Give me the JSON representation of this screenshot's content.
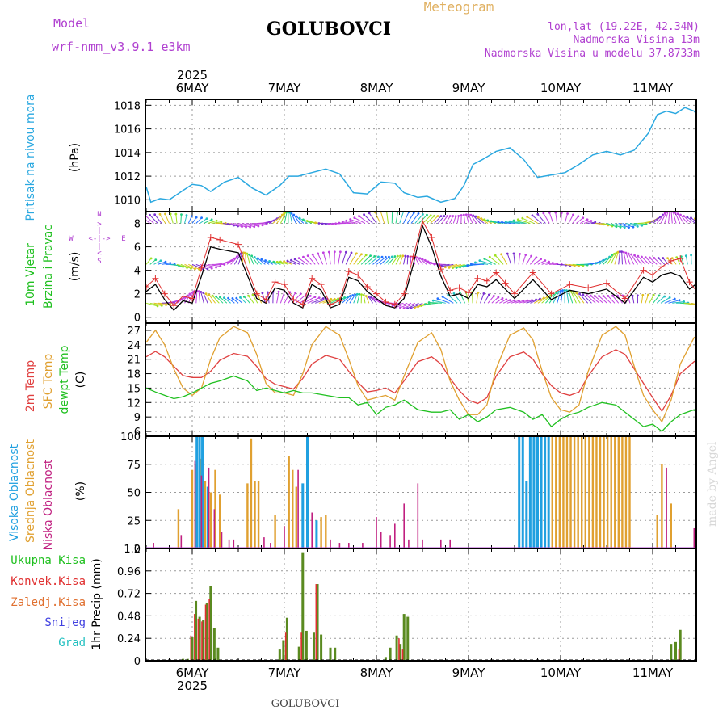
{
  "header": {
    "model_label": "Model",
    "model_name": "wrf-nmm_v3.9.1 e3km",
    "station": "GOLUBOVCI",
    "product": "Meteogram",
    "lonlat": "lon,lat (19.22E, 42.34N)",
    "elevation": "Nadmorska Visina 13m",
    "model_elevation": "Nadmorska Visina u modelu 37.8733m",
    "footer_station": "GOLUBOVCI",
    "watermark": "made by Angel"
  },
  "colors": {
    "pressure": "#2aa8e0",
    "wind_speed": "#000000",
    "gust": "#e03030",
    "temp2m": "#e04040",
    "sfc": "#e0a030",
    "dewpt": "#20c020",
    "cloud_high": "#20a0e0",
    "cloud_mid": "#e0a030",
    "cloud_low": "#c02080",
    "precip_total": "#5a8a20",
    "precip_conv": "#e03030"
  },
  "time_axis": {
    "year": "2025",
    "days": [
      "6MAY",
      "7MAY",
      "8MAY",
      "9MAY",
      "10MAY",
      "11MAY"
    ]
  },
  "chart_data": [
    {
      "type": "line",
      "title": "Pritisak na nivou mora",
      "ylabel": "(hPa)",
      "ylim": [
        1009,
        1018.5
      ],
      "yticks": [
        1010,
        1012,
        1014,
        1016,
        1018
      ],
      "x_unit": "day",
      "series": [
        {
          "name": "Pressure",
          "x": [
            -0.5,
            -0.45,
            -0.35,
            -0.25,
            -0.1,
            0.0,
            0.1,
            0.2,
            0.35,
            0.5,
            0.65,
            0.8,
            0.95,
            1.05,
            1.15,
            1.3,
            1.45,
            1.6,
            1.75,
            1.9,
            2.05,
            2.2,
            2.3,
            2.45,
            2.55,
            2.7,
            2.85,
            2.95,
            3.05,
            3.15,
            3.3,
            3.45,
            3.6,
            3.75,
            3.9,
            4.05,
            4.2,
            4.35,
            4.5,
            4.65,
            4.8,
            4.95,
            5.05,
            5.15,
            5.25,
            5.35,
            5.45,
            5.55,
            5.6
          ],
          "y": [
            1011.1,
            1009.8,
            1010.1,
            1010.0,
            1010.8,
            1011.3,
            1011.2,
            1010.7,
            1011.5,
            1011.9,
            1011.0,
            1010.4,
            1011.2,
            1012.0,
            1012.0,
            1012.3,
            1012.6,
            1012.2,
            1010.6,
            1010.5,
            1011.5,
            1011.4,
            1010.6,
            1010.2,
            1010.3,
            1009.8,
            1010.1,
            1011.2,
            1013.0,
            1013.4,
            1014.1,
            1014.4,
            1013.4,
            1011.9,
            1012.1,
            1012.3,
            1013.0,
            1013.8,
            1014.1,
            1013.8,
            1014.2,
            1015.6,
            1017.2,
            1017.5,
            1017.3,
            1017.8,
            1017.5,
            1016.5,
            1015.8
          ]
        }
      ]
    },
    {
      "type": "line",
      "title": "10m Vjetar Brzina i Pravac",
      "ylabel": "(m/s)",
      "ylim": [
        -0.5,
        9
      ],
      "yticks": [
        0,
        2,
        4,
        6,
        8
      ],
      "compass_labels": {
        "north": "N",
        "south": "S",
        "west": "W",
        "east": "E"
      },
      "series": [
        {
          "name": "Wind speed",
          "x": [
            -0.5,
            -0.4,
            -0.3,
            -0.2,
            -0.1,
            0.0,
            0.1,
            0.2,
            0.3,
            0.5,
            0.7,
            0.8,
            0.9,
            1.0,
            1.1,
            1.2,
            1.3,
            1.4,
            1.5,
            1.6,
            1.7,
            1.8,
            1.9,
            2.0,
            2.1,
            2.2,
            2.3,
            2.4,
            2.5,
            2.6,
            2.7,
            2.8,
            2.9,
            3.0,
            3.1,
            3.2,
            3.3,
            3.4,
            3.5,
            3.7,
            3.9,
            4.1,
            4.3,
            4.5,
            4.7,
            4.9,
            5.0,
            5.1,
            5.2,
            5.3,
            5.4,
            5.5,
            5.6
          ],
          "y": [
            2.2,
            2.8,
            1.5,
            0.6,
            1.4,
            1.2,
            3.5,
            6.0,
            5.8,
            5.5,
            1.6,
            1.2,
            2.5,
            2.3,
            1.2,
            0.8,
            2.8,
            2.3,
            0.8,
            1.1,
            3.4,
            3.1,
            2.2,
            1.6,
            1.0,
            0.8,
            1.6,
            4.5,
            7.8,
            6.0,
            3.5,
            1.8,
            2.0,
            1.6,
            2.8,
            2.6,
            3.2,
            2.4,
            1.6,
            3.2,
            1.5,
            2.3,
            2.0,
            2.4,
            1.2,
            3.4,
            3.0,
            3.6,
            3.8,
            3.5,
            2.4,
            3.0,
            2.8
          ]
        },
        {
          "name": "Gust",
          "x": [
            -0.5,
            -0.4,
            -0.3,
            -0.2,
            -0.1,
            0.0,
            0.1,
            0.2,
            0.3,
            0.5,
            0.7,
            0.8,
            0.9,
            1.0,
            1.1,
            1.2,
            1.3,
            1.4,
            1.5,
            1.6,
            1.7,
            1.8,
            1.9,
            2.0,
            2.1,
            2.2,
            2.3,
            2.4,
            2.5,
            2.6,
            2.7,
            2.8,
            2.9,
            3.0,
            3.1,
            3.2,
            3.3,
            3.4,
            3.5,
            3.7,
            3.9,
            4.1,
            4.3,
            4.5,
            4.7,
            4.9,
            5.0,
            5.1,
            5.2,
            5.3,
            5.4,
            5.5,
            5.6
          ],
          "y": [
            2.6,
            3.3,
            2.0,
            1.0,
            1.8,
            1.6,
            4.2,
            6.8,
            6.6,
            6.2,
            2.0,
            1.5,
            3.0,
            2.8,
            1.5,
            1.1,
            3.3,
            2.8,
            1.1,
            1.4,
            3.9,
            3.6,
            2.6,
            2.0,
            1.3,
            1.1,
            2.0,
            5.2,
            8.2,
            6.8,
            4.1,
            2.3,
            2.5,
            2.1,
            3.3,
            3.1,
            3.8,
            2.9,
            2.0,
            3.8,
            2.0,
            2.8,
            2.5,
            2.9,
            1.6,
            4.0,
            3.6,
            4.3,
            4.8,
            5.0,
            3.0,
            2.0,
            1.8
          ]
        }
      ],
      "barb_rows": [
        8,
        4.5,
        1.2
      ]
    },
    {
      "type": "line",
      "title": "2m Temp / SFC Temp / dewpt Temp",
      "ylabel": "(C)",
      "ylim": [
        5,
        28.5
      ],
      "yticks": [
        6,
        9,
        12,
        15,
        18,
        21,
        24,
        27
      ],
      "series": [
        {
          "name": "2m Temp",
          "x": [
            -0.5,
            -0.4,
            -0.3,
            -0.2,
            -0.1,
            0.0,
            0.1,
            0.2,
            0.3,
            0.45,
            0.6,
            0.7,
            0.8,
            0.9,
            1.0,
            1.1,
            1.2,
            1.3,
            1.45,
            1.6,
            1.7,
            1.8,
            1.9,
            2.0,
            2.1,
            2.2,
            2.3,
            2.45,
            2.6,
            2.7,
            2.8,
            2.9,
            3.0,
            3.1,
            3.2,
            3.3,
            3.45,
            3.6,
            3.7,
            3.8,
            3.9,
            4.0,
            4.1,
            4.2,
            4.3,
            4.45,
            4.6,
            4.7,
            4.8,
            4.9,
            5.0,
            5.1,
            5.2,
            5.3,
            5.45,
            5.6
          ],
          "y": [
            21.5,
            22.6,
            21.5,
            19.5,
            17.6,
            17.2,
            17.2,
            18.5,
            20.8,
            22.2,
            21.6,
            19.5,
            17.0,
            15.8,
            15.3,
            14.8,
            17.0,
            20.0,
            21.8,
            21.0,
            18.5,
            16.2,
            14.2,
            14.5,
            15.0,
            14.0,
            16.5,
            20.5,
            21.5,
            20.0,
            17.0,
            14.5,
            12.5,
            11.8,
            13.0,
            17.5,
            21.5,
            22.5,
            21.0,
            18.0,
            15.5,
            14.0,
            13.5,
            14.2,
            17.5,
            21.5,
            23.0,
            22.0,
            19.0,
            16.0,
            13.0,
            10.2,
            13.5,
            18.0,
            20.5,
            22.0
          ]
        },
        {
          "name": "SFC Temp",
          "x": [
            -0.5,
            -0.4,
            -0.3,
            -0.2,
            -0.1,
            0.0,
            0.1,
            0.2,
            0.3,
            0.45,
            0.6,
            0.7,
            0.8,
            0.9,
            1.0,
            1.1,
            1.2,
            1.3,
            1.45,
            1.6,
            1.7,
            1.8,
            1.9,
            2.0,
            2.1,
            2.2,
            2.3,
            2.45,
            2.6,
            2.7,
            2.8,
            2.9,
            3.0,
            3.1,
            3.2,
            3.3,
            3.45,
            3.6,
            3.7,
            3.8,
            3.9,
            4.0,
            4.1,
            4.2,
            4.3,
            4.45,
            4.6,
            4.7,
            4.8,
            4.9,
            5.0,
            5.1,
            5.2,
            5.3,
            5.45,
            5.6
          ],
          "y": [
            24.5,
            27.0,
            24.0,
            19.0,
            15.0,
            13.5,
            15.0,
            21.0,
            25.5,
            27.8,
            26.5,
            22.0,
            16.0,
            14.0,
            14.0,
            13.5,
            18.0,
            24.0,
            27.8,
            26.0,
            21.0,
            15.5,
            12.5,
            13.0,
            13.5,
            12.5,
            17.5,
            24.5,
            26.5,
            23.0,
            16.5,
            12.5,
            9.5,
            9.5,
            11.5,
            19.0,
            26.0,
            27.5,
            25.0,
            18.5,
            13.0,
            10.5,
            10.0,
            11.5,
            18.5,
            26.0,
            27.8,
            26.0,
            19.5,
            13.5,
            10.5,
            8.0,
            12.5,
            20.0,
            25.5,
            27.0
          ]
        },
        {
          "name": "dewpt Temp",
          "x": [
            -0.5,
            -0.4,
            -0.3,
            -0.2,
            -0.1,
            0.0,
            0.1,
            0.2,
            0.3,
            0.45,
            0.6,
            0.7,
            0.8,
            0.9,
            1.0,
            1.1,
            1.2,
            1.3,
            1.45,
            1.6,
            1.7,
            1.8,
            1.9,
            2.0,
            2.1,
            2.2,
            2.3,
            2.45,
            2.6,
            2.7,
            2.8,
            2.9,
            3.0,
            3.1,
            3.2,
            3.3,
            3.45,
            3.6,
            3.7,
            3.8,
            3.9,
            4.0,
            4.1,
            4.2,
            4.3,
            4.45,
            4.6,
            4.7,
            4.8,
            4.9,
            5.0,
            5.1,
            5.2,
            5.3,
            5.45,
            5.6
          ],
          "y": [
            15.0,
            14.2,
            13.5,
            12.8,
            13.2,
            14.0,
            15.0,
            16.0,
            16.5,
            17.5,
            16.5,
            14.5,
            15.0,
            14.5,
            14.0,
            14.5,
            14.0,
            14.0,
            13.5,
            13.0,
            13.0,
            11.5,
            12.0,
            9.5,
            11.0,
            11.5,
            12.5,
            10.5,
            10.0,
            10.0,
            10.5,
            8.5,
            9.5,
            8.0,
            9.0,
            10.5,
            11.0,
            10.0,
            8.5,
            9.5,
            7.0,
            8.5,
            9.5,
            10.0,
            11.0,
            12.0,
            11.5,
            10.0,
            8.5,
            7.0,
            7.5,
            6.0,
            8.0,
            9.5,
            10.5,
            6.5
          ]
        }
      ]
    },
    {
      "type": "bar",
      "title": "Visoka / Srednja / Niska Oblacnost",
      "ylabel": "(%)",
      "ylim": [
        0,
        100
      ],
      "yticks": [
        0,
        25,
        50,
        75,
        100
      ],
      "series": [
        {
          "name": "Visoka Oblacnost",
          "x": [
            0.05,
            0.08,
            0.11,
            0.17,
            1.2,
            1.25,
            1.35,
            3.55,
            3.59,
            3.63,
            3.67,
            3.71,
            3.75,
            3.79,
            3.83,
            3.87
          ],
          "values": [
            100,
            100,
            100,
            55,
            58,
            100,
            25,
            100,
            100,
            60,
            100,
            100,
            100,
            100,
            100,
            100
          ]
        },
        {
          "name": "Srednja Oblacnost",
          "x": [
            -0.15,
            0.0,
            0.04,
            0.09,
            0.14,
            0.2,
            0.25,
            0.3,
            0.6,
            0.64,
            0.68,
            0.72,
            0.9,
            1.05,
            1.09,
            1.13,
            1.25,
            1.4,
            1.45,
            3.91,
            3.95,
            3.99,
            4.03,
            4.07,
            4.11,
            4.15,
            4.19,
            4.23,
            4.27,
            4.31,
            4.35,
            4.39,
            4.43,
            4.47,
            4.51,
            4.55,
            4.59,
            4.63,
            4.67,
            4.71,
            4.75,
            5.05,
            5.1,
            5.2
          ],
          "values": [
            35,
            70,
            75,
            80,
            60,
            50,
            70,
            48,
            58,
            98,
            60,
            60,
            30,
            82,
            70,
            55,
            100,
            28,
            30,
            100,
            100,
            100,
            100,
            100,
            100,
            100,
            100,
            100,
            100,
            100,
            100,
            100,
            100,
            100,
            100,
            100,
            100,
            100,
            100,
            100,
            100,
            30,
            75,
            40
          ]
        },
        {
          "name": "Niska Oblacnost",
          "x": [
            -0.42,
            -0.12,
            0.03,
            0.1,
            0.18,
            0.24,
            0.32,
            0.4,
            0.45,
            0.78,
            0.85,
            1.0,
            1.15,
            1.3,
            1.5,
            1.6,
            1.7,
            1.85,
            2.0,
            2.05,
            2.15,
            2.2,
            2.3,
            2.35,
            2.45,
            2.5,
            2.7,
            2.8,
            5.15,
            5.45
          ],
          "values": [
            5,
            12,
            78,
            65,
            72,
            35,
            15,
            8,
            8,
            10,
            5,
            20,
            70,
            32,
            8,
            5,
            5,
            5,
            28,
            15,
            12,
            22,
            40,
            8,
            58,
            8,
            8,
            8,
            72,
            18
          ]
        }
      ]
    },
    {
      "type": "bar",
      "title": "1hr Precip",
      "ylabel": "1hr Precip (mm)",
      "ylim": [
        0,
        1.2
      ],
      "yticks": [
        0,
        0.24,
        0.48,
        0.72,
        0.96,
        1.2
      ],
      "legend": [
        "Ukupna Kisa",
        "Konvek.Kisa",
        "Zaledj.Kisa",
        "Snijeg",
        "Grad"
      ],
      "series": [
        {
          "name": "Ukupna Kisa",
          "x": [
            -0.1,
            -0.05,
            0.0,
            0.04,
            0.08,
            0.12,
            0.16,
            0.2,
            0.24,
            0.28,
            0.95,
            0.99,
            1.03,
            1.07,
            1.16,
            1.2,
            1.24,
            1.32,
            1.36,
            1.4,
            1.5,
            1.55,
            2.1,
            2.15,
            2.22,
            2.26,
            2.3,
            2.34,
            2.38,
            5.2,
            5.25,
            5.3
          ],
          "values": [
            0.02,
            0.02,
            0.25,
            0.64,
            0.47,
            0.44,
            0.62,
            0.8,
            0.35,
            0.14,
            0.12,
            0.22,
            0.46,
            0.0,
            0.15,
            1.16,
            0.32,
            0.3,
            0.82,
            0.28,
            0.14,
            0.14,
            0.04,
            0.14,
            0.27,
            0.18,
            0.5,
            0.47,
            0.0,
            0.18,
            0.2,
            0.33
          ]
        },
        {
          "name": "Konvek.Kisa",
          "x": [
            0.0,
            0.04,
            0.08,
            0.12,
            0.16,
            0.2,
            1.03,
            1.2,
            1.36,
            2.26,
            2.3,
            5.3
          ],
          "values": [
            0.27,
            0.5,
            0.45,
            0.42,
            0.6,
            0.66,
            0.3,
            0.3,
            0.82,
            0.24,
            0.12,
            0.12
          ]
        }
      ]
    }
  ]
}
